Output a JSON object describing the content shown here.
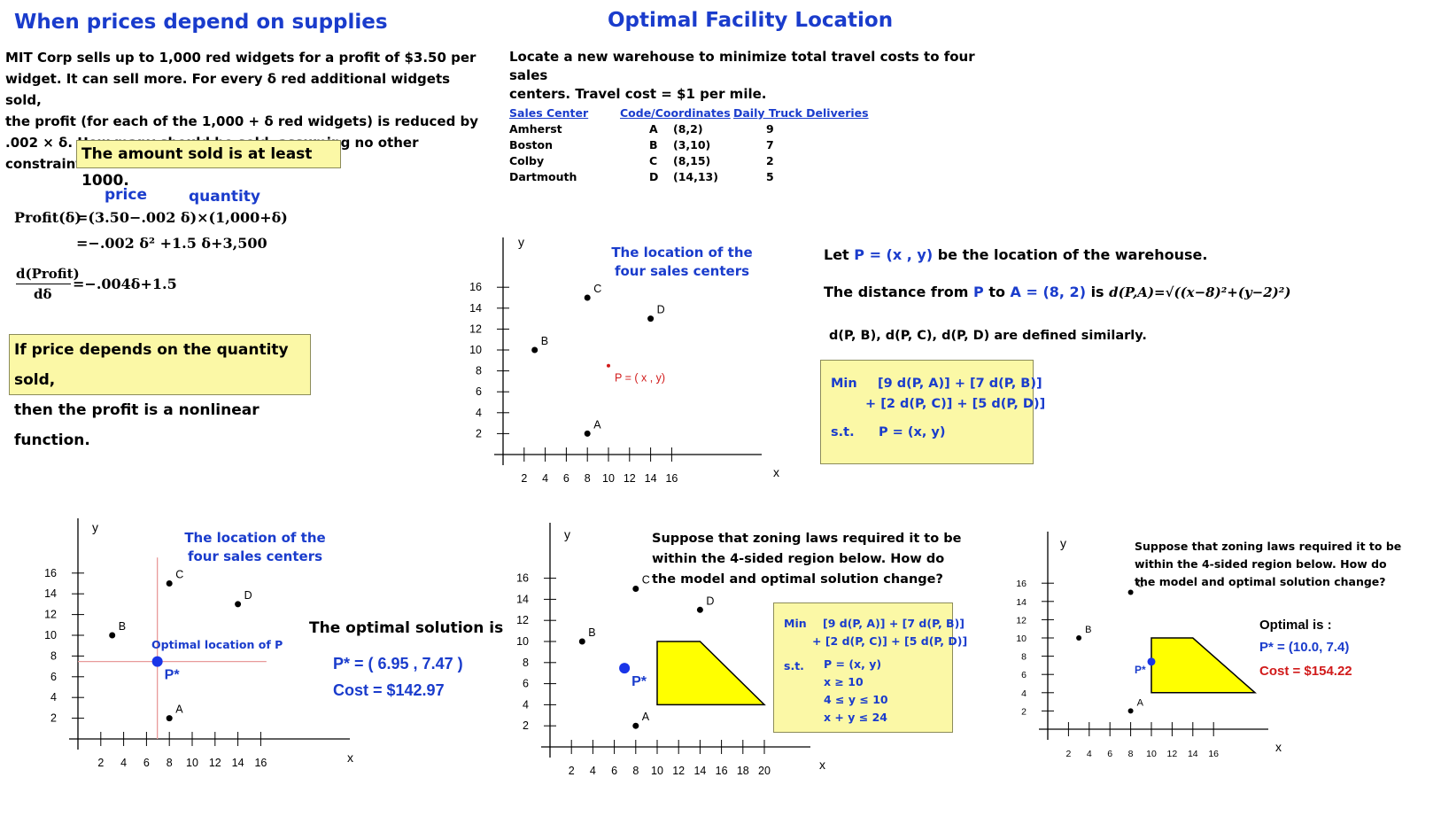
{
  "left": {
    "title": "When prices depend on supplies",
    "problem": [
      "MIT Corp sells up to 1,000 red widgets for a profit of $3.50 per",
      "widget.   It can sell more.  For every δ red additional widgets sold,",
      "the profit (for each of the 1,000 + δ red widgets)  is reduced by",
      ".002 × δ.  How many should be sold, assuming no other constraints?"
    ],
    "box1": "The amount sold is at least 1000.",
    "price_label": "price",
    "quantity_label": "quantity",
    "profit_eq": "Profit(δ) = (3.50 − .002 δ) × (1,000 + δ)",
    "profit_lhs": "Profit(δ)",
    "profit_eq1": "=(3.50−.002 δ)×(1,000+δ)",
    "profit_eq2": "=−.002 δ² +1.5 δ+3,500",
    "deriv_num": "d(Profit)",
    "deriv_den": "dδ",
    "deriv_rhs": "=−.004δ+1.5",
    "box2_line1": "If price depends on the quantity sold,",
    "box2_line2": "then the profit is a nonlinear function."
  },
  "right": {
    "title": "Optimal Facility Location",
    "intro_line1": "Locate a new warehouse to minimize total travel costs to four sales",
    "intro_line2": "centers.   Travel cost = $1 per mile.",
    "table": {
      "headers": [
        "Sales Center",
        "Code/Coordinates",
        "Daily Truck Deliveries"
      ],
      "rows": [
        {
          "center": "Amherst",
          "code": "A",
          "coord": "(8,2)",
          "deliveries": "9"
        },
        {
          "center": "Boston",
          "code": "B",
          "coord": "(3,10)",
          "deliveries": "7"
        },
        {
          "center": "Colby",
          "code": "C",
          "coord": "(8,15)",
          "deliveries": "2"
        },
        {
          "center": "Dartmouth",
          "code": "D",
          "coord": "(14,13)",
          "deliveries": "5"
        }
      ]
    },
    "chart_caption_line1": "The location of the",
    "chart_caption_line2": "four sales centers",
    "p_label": "P = ( x , y)",
    "let_prefix": "Let ",
    "let_p": "P = (x , y)",
    "let_suffix": " be the location of the warehouse.",
    "dist_prefix": "The distance from ",
    "dist_p": "P",
    "dist_to": " to ",
    "dist_a": "A = (8, 2)",
    "dist_is": " is ",
    "dist_formula": "d(P,A)=√((x−8)²+(y−2)²)",
    "similar": "d(P, B), d(P, C), d(P, D) are defined similarly.",
    "model": {
      "min_label": "Min",
      "min_line1": "[9 d(P, A)] +  [7 d(P, B)]",
      "min_line2": "+ [2 d(P, C)] +  [5 d(P, D)]",
      "st_label": "s.t.",
      "st_line": "P = (x, y)"
    }
  },
  "bottom_left": {
    "caption_line1": "The location of the",
    "caption_line2": "four sales centers",
    "optimal_label": "Optimal location of P",
    "pstar": "P*",
    "solution_title": "The optimal solution is",
    "solution_p": "P* = ( 6.95 , 7.47 )",
    "solution_cost": "Cost = $142.97"
  },
  "bottom_middle": {
    "question_line1": "Suppose that zoning laws required it to be",
    "question_line2": "within the 4-sided region below.  How do",
    "question_line3": "the model and optimal solution change?",
    "pstar": "P*",
    "model": {
      "min_label": "Min",
      "min_line1": "[9 d(P, A)] +  [7 d(P, B)]",
      "min_line2": "+ [2 d(P, C)] +  [5 d(P, D)]",
      "st_label": "s.t.",
      "constraints": [
        "P = (x, y)",
        "x ≥ 10",
        "4 ≤ y ≤ 10",
        "x + y ≤ 24"
      ]
    }
  },
  "bottom_right": {
    "question_line1": "Suppose that zoning laws required it to be",
    "question_line2": "within the 4-sided region below.  How do",
    "question_line3": "the model and optimal solution change?",
    "pstar": "P*",
    "optimal_title": "Optimal is :",
    "optimal_p": "P*  = (10.0, 7.4)",
    "optimal_cost": "Cost = $154.22"
  },
  "chart_data": [
    {
      "type": "scatter",
      "xlabel": "x",
      "ylabel": "y",
      "xticks": [
        2,
        4,
        6,
        8,
        10,
        12,
        14,
        16
      ],
      "yticks": [
        2,
        4,
        6,
        8,
        10,
        12,
        14,
        16
      ],
      "points": [
        {
          "label": "A",
          "x": 8,
          "y": 2
        },
        {
          "label": "B",
          "x": 3,
          "y": 10
        },
        {
          "label": "C",
          "x": 8,
          "y": 15
        },
        {
          "label": "D",
          "x": 14,
          "y": 13
        },
        {
          "label": "P = ( x , y)",
          "x": 10,
          "y": 8.5
        }
      ]
    },
    {
      "type": "scatter",
      "xlabel": "x",
      "ylabel": "y",
      "xticks": [
        2,
        4,
        6,
        8,
        10,
        12,
        14,
        16
      ],
      "yticks": [
        2,
        4,
        6,
        8,
        10,
        12,
        14,
        16
      ],
      "points": [
        {
          "label": "A",
          "x": 8,
          "y": 2
        },
        {
          "label": "B",
          "x": 3,
          "y": 10
        },
        {
          "label": "C",
          "x": 8,
          "y": 15
        },
        {
          "label": "D",
          "x": 14,
          "y": 13
        },
        {
          "label": "P*",
          "x": 6.95,
          "y": 7.47
        }
      ]
    },
    {
      "type": "scatter",
      "xlabel": "x",
      "ylabel": "y",
      "xticks": [
        2,
        4,
        6,
        8,
        10,
        12,
        14,
        16,
        18,
        20
      ],
      "yticks": [
        2,
        4,
        6,
        8,
        10,
        12,
        14,
        16
      ],
      "points": [
        {
          "label": "A",
          "x": 8,
          "y": 2
        },
        {
          "label": "B",
          "x": 3,
          "y": 10
        },
        {
          "label": "C",
          "x": 8,
          "y": 15
        },
        {
          "label": "D",
          "x": 14,
          "y": 13
        },
        {
          "label": "P*",
          "x": 6.95,
          "y": 7.47
        }
      ],
      "region": [
        [
          10,
          10
        ],
        [
          14,
          10
        ],
        [
          20,
          4
        ],
        [
          10,
          4
        ]
      ]
    },
    {
      "type": "scatter",
      "xlabel": "x",
      "ylabel": "y",
      "xticks": [
        2,
        4,
        6,
        8,
        10,
        12,
        14,
        16
      ],
      "yticks": [
        2,
        4,
        6,
        8,
        10,
        12,
        14,
        16
      ],
      "points": [
        {
          "label": "A",
          "x": 8,
          "y": 2
        },
        {
          "label": "B",
          "x": 3,
          "y": 10
        },
        {
          "label": "C",
          "x": 8,
          "y": 15
        },
        {
          "label": "P*",
          "x": 10.0,
          "y": 7.4
        }
      ],
      "region": [
        [
          10,
          10
        ],
        [
          14,
          10
        ],
        [
          20,
          4
        ],
        [
          10,
          4
        ]
      ]
    }
  ],
  "colors": {
    "title_blue": "#1a3ccc",
    "box_yellow": "#fbf8a6",
    "region_yellow": "#ffff00",
    "red": "#d11a1a",
    "pink_line": "#e89a9a"
  }
}
